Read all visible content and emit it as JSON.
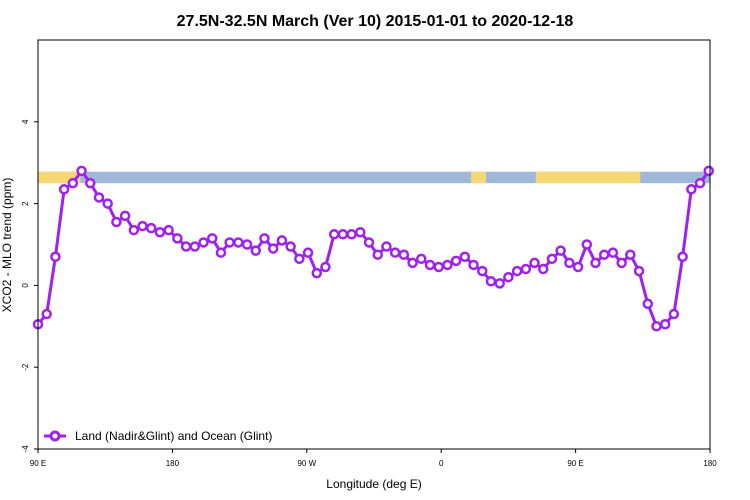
{
  "chart_data": {
    "type": "line",
    "title": "27.5N-32.5N March (Ver 10)   2015-01-01 to 2020-12-18",
    "xlabel": "Longitude (deg E)",
    "ylabel": "XCO2 - MLO trend (ppm)",
    "xlim": [
      -90,
      180
    ],
    "ylim": [
      -4,
      6
    ],
    "x_tick_labels": [
      "90 E",
      "180",
      "90 W",
      "0",
      "90 E",
      "180"
    ],
    "y_ticks": [
      -4,
      -2,
      0,
      2,
      4
    ],
    "y_tick_labels": [
      "-4",
      "-2",
      "0",
      "2",
      "4"
    ],
    "grid": false,
    "legend_position": "bottom-left",
    "series": [
      {
        "name": "Land (Nadir&Glint) and Ocean (Glint)",
        "color": "#a020f0",
        "x": [
          -90,
          -86.5,
          -83,
          -79.5,
          -76,
          -72.5,
          -69,
          -65.5,
          -62,
          -58.5,
          -55,
          -51.5,
          -48,
          -44.5,
          -41,
          -37.5,
          -34,
          -30.5,
          -27,
          -23.5,
          -20,
          -16.5,
          -13,
          -9.5,
          -6,
          -2.5,
          1,
          4.5,
          8,
          11.5,
          15,
          18.5,
          22,
          25.5,
          29,
          32.5,
          36,
          39.5,
          43,
          46.5,
          50,
          53.5,
          57,
          60.5,
          64,
          67.5,
          71,
          74.5,
          78,
          81.5,
          85,
          88.5,
          92,
          95.5,
          99,
          102.5,
          106,
          109.5,
          113,
          116.5,
          120,
          123.5,
          127,
          130.5,
          134,
          137.5,
          141,
          144.5,
          148,
          151.5,
          155,
          158.5,
          162,
          165.5,
          169,
          172.5,
          176,
          179.5
        ],
        "y": [
          -0.95,
          -0.7,
          0.7,
          2.35,
          2.5,
          2.8,
          2.5,
          2.15,
          2.0,
          1.55,
          1.7,
          1.35,
          1.45,
          1.4,
          1.3,
          1.35,
          1.15,
          0.95,
          0.95,
          1.05,
          1.15,
          0.8,
          1.05,
          1.05,
          1.0,
          0.85,
          1.15,
          0.9,
          1.1,
          0.95,
          0.65,
          0.8,
          0.3,
          0.45,
          1.25,
          1.25,
          1.25,
          1.3,
          1.05,
          0.75,
          0.95,
          0.8,
          0.75,
          0.55,
          0.65,
          0.5,
          0.45,
          0.5,
          0.6,
          0.7,
          0.5,
          0.35,
          0.1,
          0.05,
          0.2,
          0.35,
          0.4,
          0.55,
          0.4,
          0.65,
          0.85,
          0.55,
          0.45,
          1.0,
          0.55,
          0.75,
          0.8,
          0.55,
          0.75,
          0.35,
          -0.45,
          -1.0,
          -0.95,
          -0.7,
          0.7,
          2.35,
          2.5,
          2.8
        ]
      }
    ]
  },
  "map_strip": {
    "land_color": "#f7d774",
    "ocean_color": "#9fb7d9",
    "y_range": [
      2.5,
      2.78
    ]
  }
}
